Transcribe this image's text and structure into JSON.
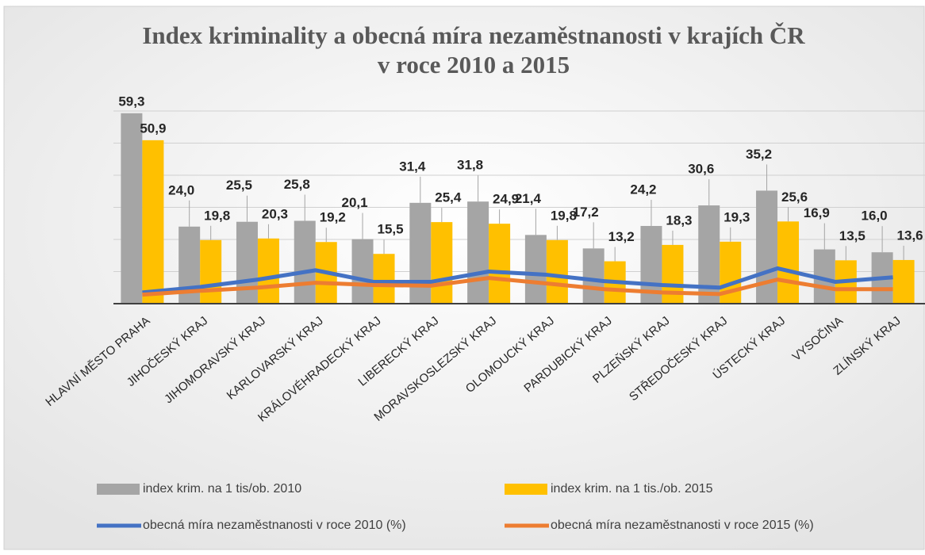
{
  "chart_data": {
    "type": "bar_line",
    "title": [
      "Index kriminality a obecná míra nezaměstnanosti v krajích ČR",
      "v roce 2010 a 2015"
    ],
    "categories": [
      "HLAVNÍ MĚSTO PRAHA",
      "JIHOČESKÝ KRAJ",
      "JIHOMORAVSKÝ KRAJ",
      "KARLOVARSKÝ KRAJ",
      "KRÁLOVÉHRADECKÝ KRAJ",
      "LIBERECKÝ KRAJ",
      "MORAVSKOSLEZSKÝ KRAJ",
      "OLOMOUCKÝ KRAJ",
      "PARDUBICKÝ KRAJ",
      "PLZEŇSKÝ KRAJ",
      "STŘEDOČESKÝ KRAJ",
      "ÚSTECKÝ KRAJ",
      "VYSOČINA",
      "ZLÍNSKÝ KRAJ"
    ],
    "series": [
      {
        "name": "index krim. na 1 tis/ob. 2010",
        "kind": "bar",
        "color": "#a5a5a5",
        "values": [
          59.3,
          24.0,
          25.5,
          25.8,
          20.1,
          31.4,
          31.8,
          21.4,
          17.2,
          24.2,
          30.6,
          35.2,
          16.9,
          16.0
        ],
        "value_labels": [
          "59,3",
          "24,0",
          "25,5",
          "25,8",
          "20,1",
          "31,4",
          "31,8",
          "21,4",
          "17,2",
          "24,2",
          "30,6",
          "35,2",
          "16,9",
          "16,0"
        ]
      },
      {
        "name": "index krim. na 1 tis./ob. 2015",
        "kind": "bar",
        "color": "#ffc000",
        "values": [
          50.9,
          19.8,
          20.3,
          19.2,
          15.5,
          25.4,
          24.9,
          19.8,
          13.2,
          18.3,
          19.3,
          25.6,
          13.5,
          13.6
        ],
        "value_labels": [
          "50,9",
          "19,8",
          "20,3",
          "19,2",
          "15,5",
          "25,4",
          "24,9",
          "19,8",
          "13,2",
          "18,3",
          "19,3",
          "25,6",
          "13,5",
          "13,6"
        ]
      },
      {
        "name": "obecná míra nezaměstnanosti v roce 2010 (%)",
        "kind": "line",
        "color": "#4472c4",
        "values": [
          3.5,
          5.2,
          7.5,
          10.4,
          6.8,
          6.8,
          10.0,
          9.0,
          7.0,
          5.8,
          5.0,
          11.0,
          6.8,
          8.2
        ]
      },
      {
        "name": "obecná míra nezaměstnanosti v roce 2015 (%)",
        "kind": "line",
        "color": "#ed7d31",
        "values": [
          2.8,
          4.0,
          5.0,
          6.5,
          5.8,
          5.6,
          8.0,
          6.3,
          4.5,
          3.5,
          3.0,
          7.5,
          4.5,
          4.5
        ]
      }
    ],
    "ylim": [
      0,
      60
    ],
    "yticks": [
      0,
      10,
      20,
      30,
      40,
      50,
      60
    ],
    "grid": true,
    "legend": "bottom"
  }
}
